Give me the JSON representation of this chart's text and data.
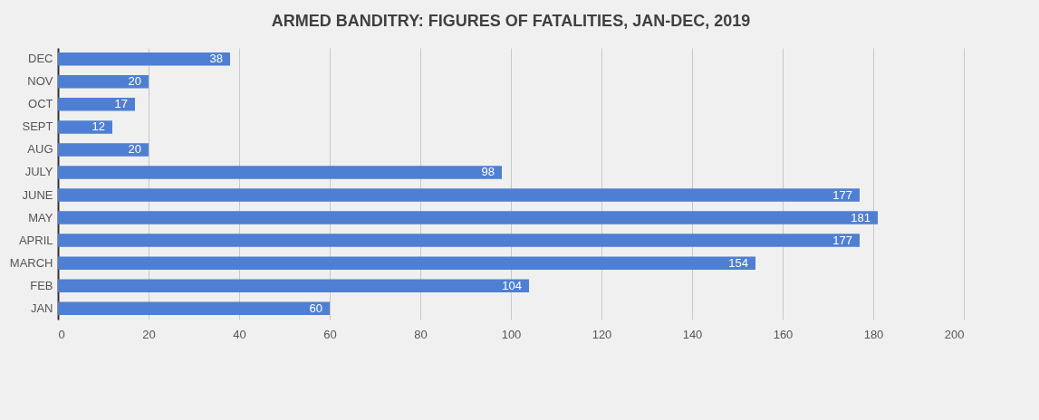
{
  "chart_data": {
    "type": "bar",
    "orientation": "horizontal",
    "title": "ARMED BANDITRY: FIGURES OF FATALITIES, JAN-DEC, 2019",
    "categories": [
      "DEC",
      "NOV",
      "OCT",
      "SEPT",
      "AUG",
      "JULY",
      "JUNE",
      "MAY",
      "APRIL",
      "MARCH",
      "FEB",
      "JAN"
    ],
    "values": [
      38,
      20,
      17,
      12,
      20,
      98,
      177,
      181,
      177,
      154,
      104,
      60
    ],
    "color": "#4f7fd2",
    "xlim": [
      0,
      200
    ],
    "xticks": [
      0,
      20,
      40,
      60,
      80,
      100,
      120,
      140,
      160,
      180,
      200
    ],
    "grid": "x",
    "data_labels": true
  }
}
